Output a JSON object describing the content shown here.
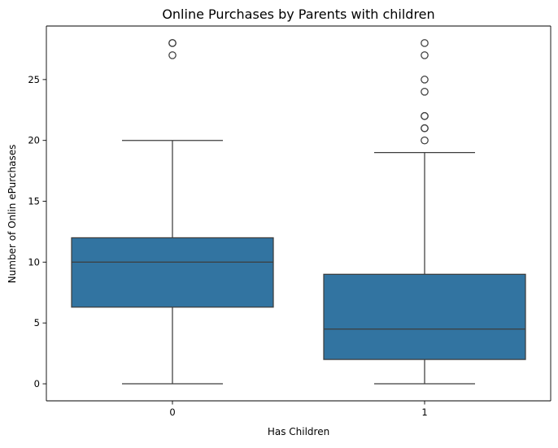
{
  "chart_data": {
    "type": "box",
    "title": "Online Purchases by Parents with children",
    "xlabel": "Has Children",
    "ylabel": "Number of Onlin ePurchases",
    "categories": [
      "0",
      "1"
    ],
    "ylim": [
      -1.4,
      29.4
    ],
    "yticks": [
      0,
      5,
      10,
      15,
      20,
      25
    ],
    "grid": false,
    "colors": {
      "box_fill": "#3274a1",
      "line": "#3d3d3d"
    },
    "boxes": [
      {
        "category": "0",
        "whisker_low": 0,
        "q1": 6.3,
        "median": 10,
        "q3": 12,
        "whisker_high": 20,
        "outliers": [
          27,
          28,
          28
        ]
      },
      {
        "category": "1",
        "whisker_low": 0,
        "q1": 2,
        "median": 4.5,
        "q3": 9,
        "whisker_high": 19,
        "outliers": [
          20,
          21,
          21,
          22,
          22,
          24,
          25,
          27,
          28
        ]
      }
    ]
  }
}
